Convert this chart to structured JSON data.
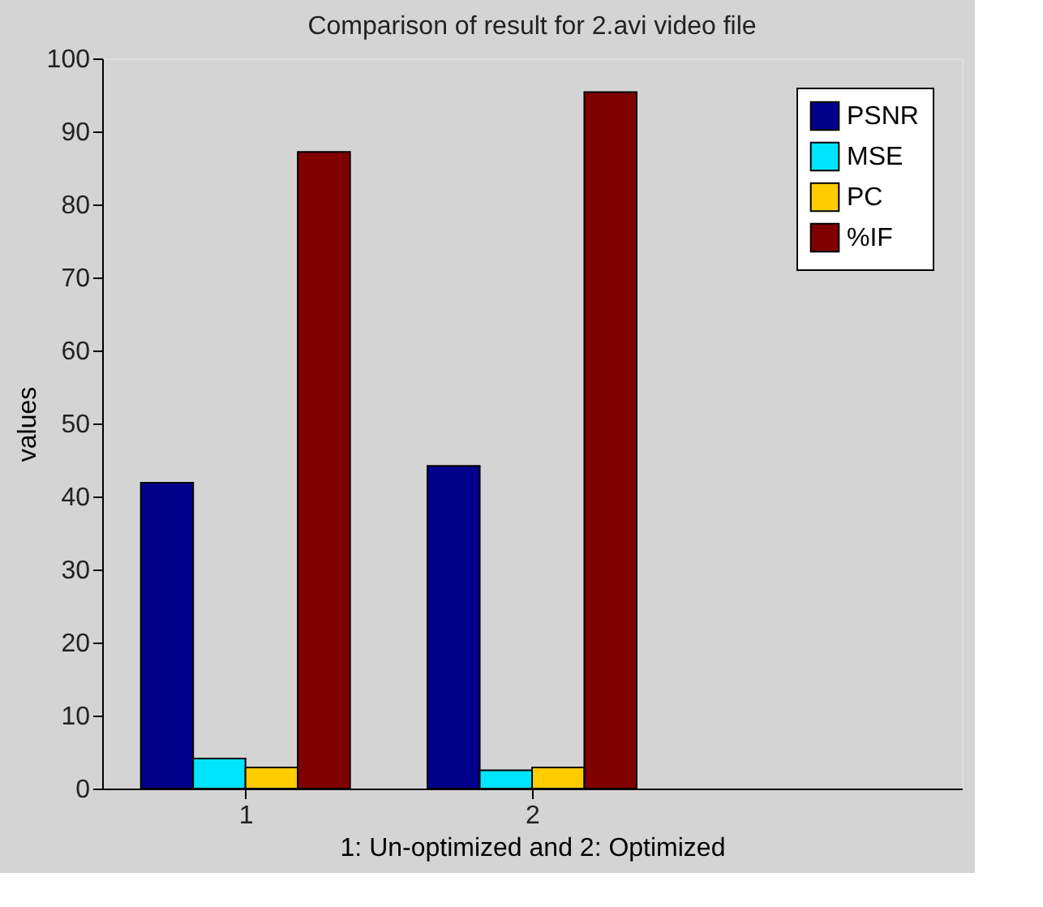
{
  "chart_data": {
    "type": "bar",
    "title": "Comparison of result for 2.avi video file",
    "xlabel": "1: Un-optimized and 2: Optimized",
    "ylabel": "values",
    "x": [
      1,
      2
    ],
    "xlim": [
      0.5,
      3.5
    ],
    "xticks": [
      1,
      2
    ],
    "ylim": [
      0,
      100
    ],
    "yticks": [
      0,
      10,
      20,
      30,
      40,
      50,
      60,
      70,
      80,
      90,
      100
    ],
    "series": [
      {
        "name": "PSNR",
        "color": "#00008b",
        "values": [
          41.9,
          44.2
        ]
      },
      {
        "name": "MSE",
        "color": "#00e5ff",
        "values": [
          4.1,
          2.5
        ]
      },
      {
        "name": "PC",
        "color": "#ffcc00",
        "values": [
          2.9,
          2.9
        ]
      },
      {
        "name": "%IF",
        "color": "#800000",
        "values": [
          87.2,
          95.4
        ]
      }
    ],
    "legend": "top right",
    "grid": false
  }
}
